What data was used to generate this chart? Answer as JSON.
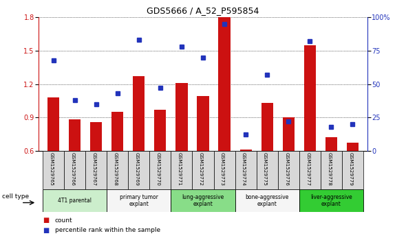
{
  "title": "GDS5666 / A_52_P595854",
  "samples": [
    "GSM1529765",
    "GSM1529766",
    "GSM1529767",
    "GSM1529768",
    "GSM1529769",
    "GSM1529770",
    "GSM1529771",
    "GSM1529772",
    "GSM1529773",
    "GSM1529774",
    "GSM1529775",
    "GSM1529776",
    "GSM1529777",
    "GSM1529778",
    "GSM1529779"
  ],
  "bar_values": [
    1.08,
    0.88,
    0.86,
    0.95,
    1.27,
    0.97,
    1.21,
    1.09,
    1.8,
    0.61,
    1.03,
    0.9,
    1.55,
    0.72,
    0.67
  ],
  "dot_values": [
    68,
    38,
    35,
    43,
    83,
    47,
    78,
    70,
    95,
    12,
    57,
    22,
    82,
    18,
    20
  ],
  "ylim_left": [
    0.6,
    1.8
  ],
  "ylim_right": [
    0,
    100
  ],
  "yticks_left": [
    0.6,
    0.9,
    1.2,
    1.5,
    1.8
  ],
  "yticks_right": [
    0,
    25,
    50,
    75,
    100
  ],
  "bar_color": "#cc1111",
  "dot_color": "#2233bb",
  "bg_color": "#ffffff",
  "group_bounds": [
    {
      "start": 0,
      "end": 2,
      "label": "4T1 parental",
      "color": "#cceecc"
    },
    {
      "start": 3,
      "end": 5,
      "label": "primary tumor\nexplant",
      "color": "#f5f5f5"
    },
    {
      "start": 6,
      "end": 8,
      "label": "lung-aggressive\nexplant",
      "color": "#88dd88"
    },
    {
      "start": 9,
      "end": 11,
      "label": "bone-aggressive\nexplant",
      "color": "#f5f5f5"
    },
    {
      "start": 12,
      "end": 14,
      "label": "liver-aggressive\nexplant",
      "color": "#33cc33"
    }
  ],
  "legend_count_label": "count",
  "legend_pct_label": "percentile rank within the sample",
  "cell_type_label": "cell type"
}
